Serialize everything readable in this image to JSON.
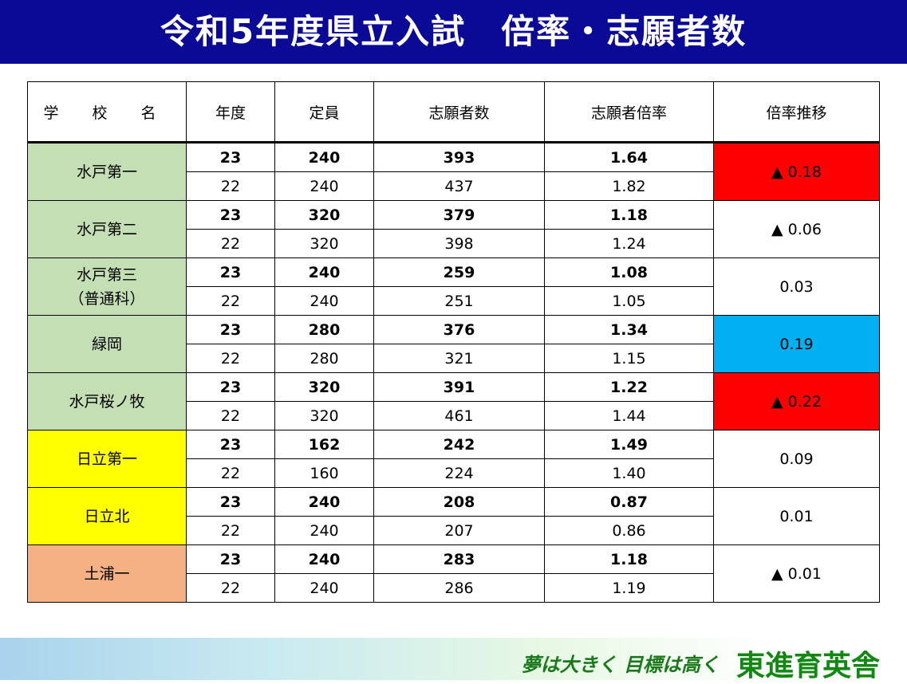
{
  "title": "令和5年度県立入試　倍率・志願者数",
  "headers": {
    "school": "学 校 名",
    "year": "年度",
    "capacity": "定員",
    "applicants": "志願者数",
    "ratio": "志願者倍率",
    "trend": "倍率推移"
  },
  "schools": [
    {
      "name": "水戸第一",
      "bg": "#c5dfb4",
      "trend": "▲ 0.18",
      "trend_bg": "#ff0000",
      "cur": {
        "year": "23",
        "capacity": "240",
        "applicants": "393",
        "ratio": "1.64"
      },
      "prev": {
        "year": "22",
        "capacity": "240",
        "applicants": "437",
        "ratio": "1.82"
      }
    },
    {
      "name": "水戸第二",
      "bg": "#c5dfb4",
      "trend": "▲ 0.06",
      "trend_bg": "#ffffff",
      "cur": {
        "year": "23",
        "capacity": "320",
        "applicants": "379",
        "ratio": "1.18"
      },
      "prev": {
        "year": "22",
        "capacity": "320",
        "applicants": "398",
        "ratio": "1.24"
      }
    },
    {
      "name": "水戸第三\n（普通科）",
      "bg": "#c5dfb4",
      "trend": "0.03",
      "trend_bg": "#ffffff",
      "cur": {
        "year": "23",
        "capacity": "240",
        "applicants": "259",
        "ratio": "1.08"
      },
      "prev": {
        "year": "22",
        "capacity": "240",
        "applicants": "251",
        "ratio": "1.05"
      }
    },
    {
      "name": "緑岡",
      "bg": "#c5dfb4",
      "trend": "0.19",
      "trend_bg": "#00b0f0",
      "cur": {
        "year": "23",
        "capacity": "280",
        "applicants": "376",
        "ratio": "1.34"
      },
      "prev": {
        "year": "22",
        "capacity": "280",
        "applicants": "321",
        "ratio": "1.15"
      }
    },
    {
      "name": "水戸桜ノ牧",
      "bg": "#c5dfb4",
      "trend": "▲ 0.22",
      "trend_bg": "#ff0000",
      "cur": {
        "year": "23",
        "capacity": "320",
        "applicants": "391",
        "ratio": "1.22"
      },
      "prev": {
        "year": "22",
        "capacity": "320",
        "applicants": "461",
        "ratio": "1.44"
      }
    },
    {
      "name": "日立第一",
      "bg": "#ffff00",
      "trend": "0.09",
      "trend_bg": "#ffffff",
      "cur": {
        "year": "23",
        "capacity": "162",
        "applicants": "242",
        "ratio": "1.49"
      },
      "prev": {
        "year": "22",
        "capacity": "160",
        "applicants": "224",
        "ratio": "1.40"
      }
    },
    {
      "name": "日立北",
      "bg": "#ffff00",
      "trend": "0.01",
      "trend_bg": "#ffffff",
      "cur": {
        "year": "23",
        "capacity": "240",
        "applicants": "208",
        "ratio": "0.87"
      },
      "prev": {
        "year": "22",
        "capacity": "240",
        "applicants": "207",
        "ratio": "0.86"
      }
    },
    {
      "name": "土浦一",
      "bg": "#f4b183",
      "trend": "▲ 0.01",
      "trend_bg": "#ffffff",
      "cur": {
        "year": "23",
        "capacity": "240",
        "applicants": "283",
        "ratio": "1.18"
      },
      "prev": {
        "year": "22",
        "capacity": "240",
        "applicants": "286",
        "ratio": "1.19"
      }
    }
  ],
  "footer": {
    "slogan": "夢は大きく 目標は高く",
    "brand": "東進育英舎"
  }
}
